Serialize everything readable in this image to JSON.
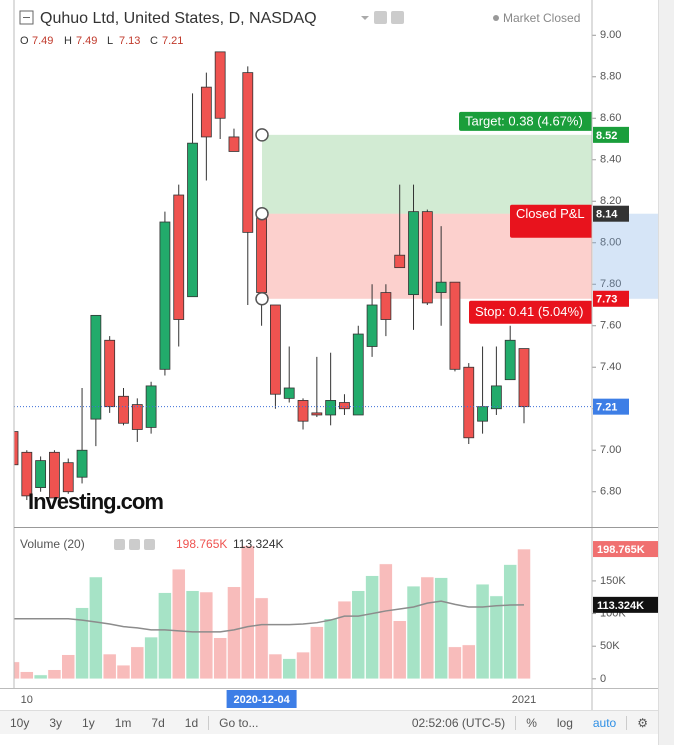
{
  "header": {
    "title": "Quhuo Ltd, United States, D, NASDAQ",
    "status": "Market Closed"
  },
  "chart_data": [
    {
      "type": "candlestick",
      "categories": [
        null,
        "10",
        null,
        null,
        null,
        null,
        null,
        null,
        null,
        null,
        null,
        null,
        null,
        null,
        null,
        null,
        null,
        null,
        "2020-12-04",
        null,
        null,
        null,
        null,
        null,
        null,
        null,
        null,
        null,
        null,
        null,
        null,
        null,
        null,
        null,
        null,
        null,
        null,
        "2021"
      ],
      "open": [
        7.09,
        6.99,
        6.82,
        6.99,
        6.94,
        6.87,
        7.15,
        7.53,
        7.26,
        7.22,
        7.11,
        7.39,
        8.23,
        7.74,
        8.75,
        8.92,
        8.51,
        8.82,
        8.12,
        7.7,
        7.25,
        7.24,
        7.18,
        7.17,
        7.23,
        7.17,
        7.5,
        7.76,
        7.94,
        7.75,
        8.15,
        7.76,
        7.81,
        7.4,
        7.14,
        7.2,
        7.34,
        7.49
      ],
      "high": [
        7.09,
        7.0,
        6.97,
        7.0,
        6.96,
        7.3,
        7.65,
        7.55,
        7.3,
        7.25,
        7.33,
        8.15,
        8.28,
        8.72,
        8.82,
        8.92,
        8.55,
        8.85,
        8.14,
        7.7,
        7.5,
        7.25,
        7.45,
        7.47,
        7.27,
        7.6,
        7.8,
        7.8,
        8.28,
        8.28,
        8.16,
        8.08,
        7.81,
        7.42,
        7.5,
        7.5,
        7.6,
        7.49
      ],
      "low": [
        6.93,
        6.76,
        6.8,
        6.76,
        6.79,
        6.84,
        7.02,
        7.18,
        7.12,
        7.04,
        7.08,
        7.36,
        7.5,
        7.74,
        8.3,
        8.5,
        8.44,
        7.7,
        7.6,
        7.2,
        7.23,
        7.1,
        7.16,
        7.12,
        7.17,
        7.17,
        7.45,
        7.55,
        7.88,
        7.58,
        7.7,
        7.6,
        7.38,
        7.03,
        7.08,
        7.17,
        7.34,
        7.13
      ],
      "close": [
        6.93,
        6.78,
        6.95,
        6.77,
        6.8,
        7.0,
        7.65,
        7.21,
        7.13,
        7.1,
        7.31,
        8.1,
        7.63,
        8.48,
        8.51,
        8.6,
        8.44,
        8.05,
        7.76,
        7.27,
        7.3,
        7.14,
        7.17,
        7.24,
        7.2,
        7.56,
        7.7,
        7.63,
        7.88,
        8.15,
        7.71,
        7.81,
        7.39,
        7.06,
        7.21,
        7.31,
        7.53,
        7.21
      ],
      "color_up": "#22ab6b",
      "color_down": "#ef5350",
      "ohlc_legend": [
        "O",
        "H",
        "L",
        "C"
      ],
      "ylim": [
        6.63,
        9.17
      ],
      "yticks": [
        {
          "value": 6.8,
          "label": "6.80"
        },
        {
          "value": 7.0,
          "label": "7.00"
        },
        {
          "value": 7.2,
          "label": "7.20"
        },
        {
          "value": 7.4,
          "label": "7.40"
        },
        {
          "value": 7.6,
          "label": "7.60"
        },
        {
          "value": 7.8,
          "label": "7.80"
        },
        {
          "value": 8.0,
          "label": "8.00"
        },
        {
          "value": 8.2,
          "label": "8.20"
        },
        {
          "value": 8.4,
          "label": "8.40"
        },
        {
          "value": 8.6,
          "label": "8.60"
        },
        {
          "value": 8.8,
          "label": "8.80"
        },
        {
          "value": 9.0,
          "label": "9.00"
        }
      ],
      "position": {
        "target": 8.52,
        "entry": 8.14,
        "stop": 7.73,
        "target_label": "Target: 0.38 (4.67%)",
        "pnl_label": "Closed P&L",
        "stop_label": "Stop: 0.41 (5.04%)"
      },
      "watermark": "Investing.com"
    },
    {
      "type": "bar",
      "title": "Volume (20)",
      "series": [
        {
          "values": [
            26000,
            11000,
            6000,
            14000,
            37000,
            109000,
            156000,
            38000,
            21000,
            49000,
            64000,
            132000,
            168000,
            135000,
            133000,
            63000,
            141000,
            204000,
            124000,
            38000,
            31000,
            41000,
            80000,
            92000,
            119000,
            135000,
            158000,
            176000,
            89000,
            142000,
            156000,
            155000,
            49000,
            52000,
            145000,
            127000,
            175000,
            198765
          ],
          "last_label": "198.765K",
          "color_up": "#a6e3c6",
          "color_down": "#f8bcbb"
        },
        {
          "type": "line",
          "values": [
            92000,
            92000,
            92000,
            92000,
            92000,
            90000,
            87000,
            84000,
            80000,
            78000,
            75000,
            75000,
            73500,
            72000,
            72000,
            72000,
            75000,
            80000,
            83000,
            83000,
            83000,
            84000,
            86000,
            90000,
            96000,
            96000,
            100000,
            104000,
            107000,
            110000,
            116000,
            119000,
            114000,
            110000,
            110000,
            112000,
            113000,
            113324
          ],
          "last_label": "113.324K",
          "color": "#8c8c8c"
        }
      ],
      "ylim": [
        -14000,
        231000
      ],
      "yticks": [
        0,
        {
          "value": 50000,
          "label": "50K"
        },
        {
          "value": 100000,
          "label": "100K"
        },
        {
          "value": 150000,
          "label": "150K"
        }
      ]
    }
  ],
  "toolbar": {
    "ranges": [
      "10y",
      "3y",
      "1y",
      "1m",
      "7d",
      "1d"
    ],
    "goto": "Go to...",
    "time": "02:52:06 (UTC-5)",
    "percent": "%",
    "log": "log",
    "auto": "auto"
  }
}
